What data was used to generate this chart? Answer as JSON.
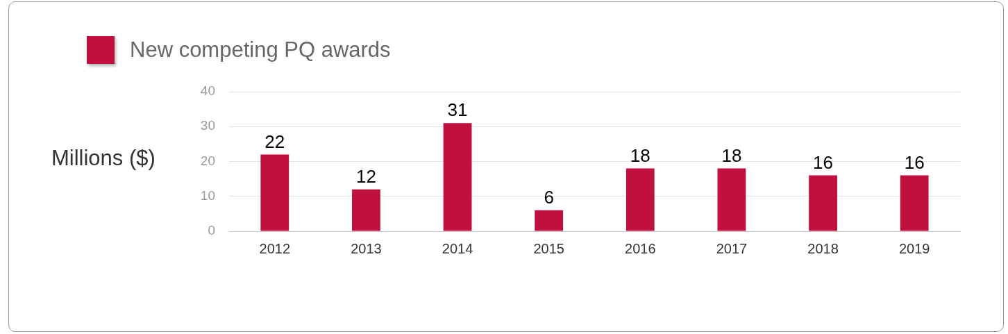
{
  "chart_data": {
    "type": "bar",
    "ylabel": "Millions ($)",
    "categories": [
      "2012",
      "2013",
      "2014",
      "2015",
      "2016",
      "2017",
      "2018",
      "2019"
    ],
    "series": [
      {
        "name": "New competing PQ awards",
        "color": "#c0103e",
        "values": [
          22,
          12,
          31,
          6,
          18,
          18,
          16,
          16
        ]
      }
    ],
    "ylim": [
      0,
      40
    ],
    "yticks": [
      0,
      10,
      20,
      30,
      40
    ],
    "grid": "y",
    "legend": "top left",
    "data_labels": true
  }
}
